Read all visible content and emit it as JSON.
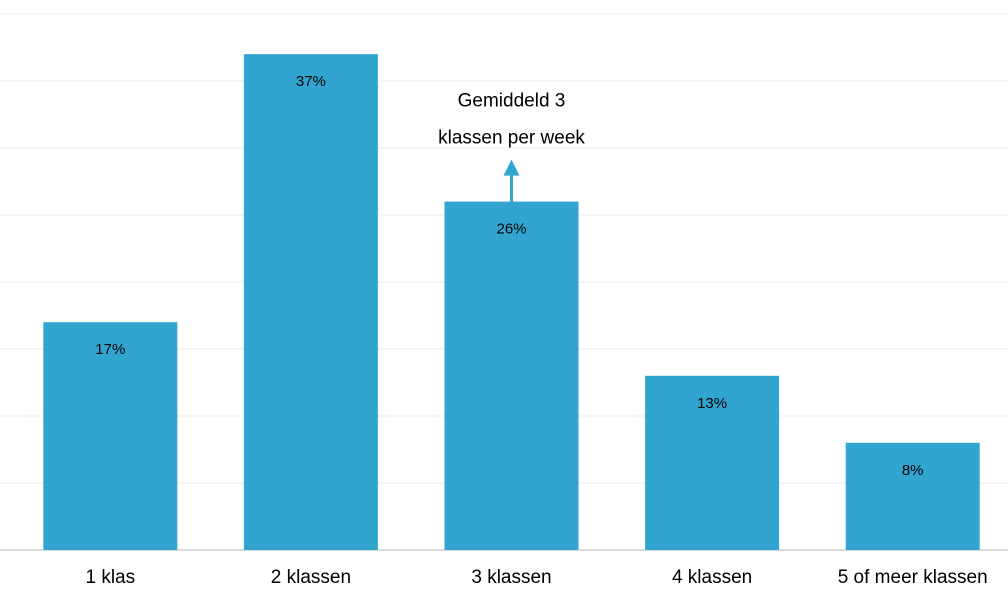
{
  "chart_data": {
    "type": "bar",
    "categories": [
      "1 klas",
      "2 klassen",
      "3 klassen",
      "4 klassen",
      "5 of meer klassen"
    ],
    "values": [
      17,
      37,
      26,
      13,
      8
    ],
    "value_labels": [
      "17%",
      "37%",
      "26%",
      "13%",
      "8%"
    ],
    "color": "#31a5d0",
    "ylim": [
      0,
      40
    ],
    "yticks": [
      0,
      5,
      10,
      15,
      20,
      25,
      30,
      35,
      40
    ],
    "grid": true,
    "annotation": [
      "Gemiddeld 3",
      "klassen per week"
    ]
  }
}
